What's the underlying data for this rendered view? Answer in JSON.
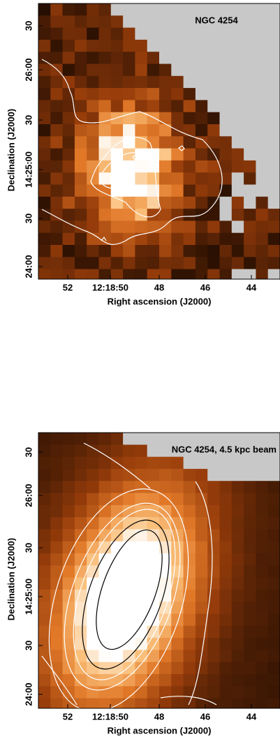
{
  "panels": [
    {
      "title": "NGC 4254",
      "x_label": "Right ascension (J2000)",
      "y_label": "Declination (J2000)",
      "x_ticks": [
        "52",
        "12:18:50",
        "48",
        "46",
        "44"
      ],
      "y_ticks": [
        "30",
        "26:00",
        "30",
        "14:25:00",
        "30",
        "24:00"
      ]
    },
    {
      "title": "NGC 4254, 4.5 kpc beam",
      "x_label": "Right ascension (J2000)",
      "y_label": "Declination (J2000)",
      "x_ticks": [
        "52",
        "12:18:50",
        "48",
        "46",
        "44"
      ],
      "y_ticks": [
        "30",
        "26:00",
        "30",
        "14:25:00",
        "30",
        "24:00"
      ]
    }
  ]
}
